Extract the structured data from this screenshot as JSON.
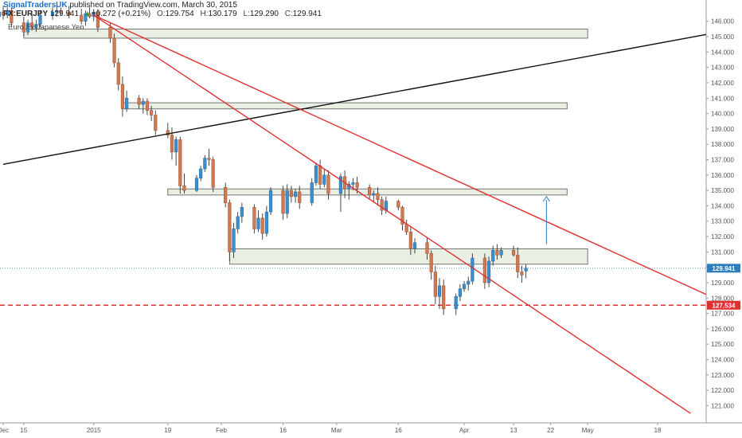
{
  "header": {
    "author": "SignalTradersUK",
    "published_text": "published on TradingView.com, March 30, 2015",
    "symbol": "FX:EURJPY",
    "last": "129.941",
    "change": "+0.272 (+0.21%)",
    "open_label": "O:",
    "open": "129.754",
    "high_label": "H:",
    "high": "130.179",
    "low_label": "L:",
    "low": "129.290",
    "close_label": "C:",
    "close": "129.941",
    "instrument": "Euro Fx/Japanese Yen"
  },
  "colors": {
    "bull": "#3b8fd0",
    "bear": "#d07a52",
    "trendline_red": "#e03030",
    "trendline_black": "#111111",
    "zone_fill": "#e9efe3",
    "zone_stroke": "#555555",
    "current_price_line": "#2f7fbf",
    "level_dashed": "#e03030",
    "arrow": "#4a90c8"
  },
  "chart_data": {
    "type": "candlestick",
    "timeframe": "daily",
    "x_start": "2014-12-10",
    "ylim": [
      120.4,
      146.4
    ],
    "y_ticks": [
      121,
      122,
      123,
      124,
      125,
      126,
      127,
      128,
      129,
      130,
      131,
      132,
      133,
      134,
      135,
      136,
      137,
      138,
      139,
      140,
      141,
      142,
      143,
      144,
      145,
      146
    ],
    "x_ticks": [
      {
        "label": "Dec",
        "date": "2014-12-10"
      },
      {
        "label": "15",
        "date": "2014-12-15"
      },
      {
        "label": "2015",
        "date": "2015-01-01"
      },
      {
        "label": "19",
        "date": "2015-01-19"
      },
      {
        "label": "Feb",
        "date": "2015-02-01"
      },
      {
        "label": "16",
        "date": "2015-02-16"
      },
      {
        "label": "Mar",
        "date": "2015-03-01"
      },
      {
        "label": "16",
        "date": "2015-03-16"
      },
      {
        "label": "Apr",
        "date": "2015-04-01"
      },
      {
        "label": "13",
        "date": "2015-04-13"
      },
      {
        "label": "22",
        "date": "2015-04-22"
      },
      {
        "label": "May",
        "date": "2015-05-01"
      },
      {
        "label": "18",
        "date": "2015-05-18"
      }
    ],
    "candles": [
      {
        "date": "2014-12-08",
        "o": 146.5,
        "h": 147.0,
        "l": 146.0,
        "c": 146.3
      },
      {
        "date": "2014-12-09",
        "o": 146.3,
        "h": 146.8,
        "l": 145.9,
        "c": 146.6
      },
      {
        "date": "2014-12-10",
        "o": 146.6,
        "h": 147.0,
        "l": 146.1,
        "c": 146.4
      },
      {
        "date": "2014-12-11",
        "o": 146.4,
        "h": 146.9,
        "l": 146.2,
        "c": 146.7
      },
      {
        "date": "2014-12-12",
        "o": 146.7,
        "h": 146.9,
        "l": 145.6,
        "c": 145.9
      },
      {
        "date": "2014-12-15",
        "o": 145.9,
        "h": 146.3,
        "l": 145.0,
        "c": 145.3
      },
      {
        "date": "2014-12-16",
        "o": 145.3,
        "h": 146.1,
        "l": 145.1,
        "c": 145.9
      },
      {
        "date": "2014-12-17",
        "o": 145.9,
        "h": 146.5,
        "l": 145.4,
        "c": 145.6
      },
      {
        "date": "2014-12-18",
        "o": 145.6,
        "h": 146.1,
        "l": 145.3,
        "c": 145.8
      },
      {
        "date": "2014-12-19",
        "o": 145.8,
        "h": 146.7,
        "l": 145.6,
        "c": 146.4
      },
      {
        "date": "2014-12-22",
        "o": 146.4,
        "h": 146.9,
        "l": 146.1,
        "c": 146.6
      },
      {
        "date": "2014-12-23",
        "o": 146.6,
        "h": 147.0,
        "l": 146.3,
        "c": 146.7
      },
      {
        "date": "2014-12-24",
        "o": 146.7,
        "h": 146.9,
        "l": 146.4,
        "c": 146.6
      },
      {
        "date": "2014-12-26",
        "o": 146.6,
        "h": 147.0,
        "l": 146.2,
        "c": 146.4
      },
      {
        "date": "2014-12-29",
        "o": 146.4,
        "h": 146.8,
        "l": 145.8,
        "c": 146.0
      },
      {
        "date": "2014-12-30",
        "o": 146.0,
        "h": 146.7,
        "l": 145.7,
        "c": 146.5
      },
      {
        "date": "2014-12-31",
        "o": 146.5,
        "h": 146.9,
        "l": 146.2,
        "c": 146.3
      },
      {
        "date": "2015-01-01",
        "o": 146.3,
        "h": 146.8,
        "l": 146.0,
        "c": 146.6
      },
      {
        "date": "2015-01-02",
        "o": 146.6,
        "h": 146.8,
        "l": 145.3,
        "c": 145.6
      },
      {
        "date": "2015-01-05",
        "o": 145.6,
        "h": 145.9,
        "l": 144.6,
        "c": 144.9
      },
      {
        "date": "2015-01-06",
        "o": 144.9,
        "h": 145.2,
        "l": 143.0,
        "c": 143.3
      },
      {
        "date": "2015-01-07",
        "o": 143.3,
        "h": 143.6,
        "l": 141.5,
        "c": 141.9
      },
      {
        "date": "2015-01-08",
        "o": 141.9,
        "h": 142.4,
        "l": 139.8,
        "c": 140.3
      },
      {
        "date": "2015-01-09",
        "o": 140.3,
        "h": 141.5,
        "l": 140.1,
        "c": 141.0
      },
      {
        "date": "2015-01-12",
        "o": 141.0,
        "h": 141.2,
        "l": 140.3,
        "c": 140.6
      },
      {
        "date": "2015-01-13",
        "o": 140.6,
        "h": 141.0,
        "l": 140.0,
        "c": 140.8
      },
      {
        "date": "2015-01-14",
        "o": 140.8,
        "h": 141.0,
        "l": 139.9,
        "c": 140.2
      },
      {
        "date": "2015-01-15",
        "o": 140.2,
        "h": 140.5,
        "l": 139.5,
        "c": 139.9
      },
      {
        "date": "2015-01-16",
        "o": 139.9,
        "h": 140.2,
        "l": 138.6,
        "c": 138.9
      },
      {
        "date": "2015-01-19",
        "o": 138.9,
        "h": 139.4,
        "l": 138.4,
        "c": 138.6
      },
      {
        "date": "2015-01-20",
        "o": 138.6,
        "h": 139.1,
        "l": 137.0,
        "c": 137.5
      },
      {
        "date": "2015-01-21",
        "o": 137.5,
        "h": 138.5,
        "l": 136.6,
        "c": 138.3
      },
      {
        "date": "2015-01-22",
        "o": 138.3,
        "h": 138.5,
        "l": 134.8,
        "c": 135.3
      },
      {
        "date": "2015-01-23",
        "o": 135.3,
        "h": 136.1,
        "l": 134.8,
        "c": 135.0
      },
      {
        "date": "2015-01-26",
        "o": 135.0,
        "h": 136.0,
        "l": 134.9,
        "c": 135.8
      },
      {
        "date": "2015-01-27",
        "o": 135.8,
        "h": 136.6,
        "l": 135.6,
        "c": 136.4
      },
      {
        "date": "2015-01-28",
        "o": 136.4,
        "h": 137.3,
        "l": 136.2,
        "c": 137.1
      },
      {
        "date": "2015-01-29",
        "o": 137.1,
        "h": 137.7,
        "l": 136.6,
        "c": 137.0
      },
      {
        "date": "2015-01-30",
        "o": 137.0,
        "h": 137.2,
        "l": 134.9,
        "c": 135.2
      },
      {
        "date": "2015-02-02",
        "o": 135.2,
        "h": 135.5,
        "l": 133.9,
        "c": 134.2
      },
      {
        "date": "2015-02-03",
        "o": 134.2,
        "h": 134.4,
        "l": 130.4,
        "c": 131.0
      },
      {
        "date": "2015-02-04",
        "o": 131.0,
        "h": 132.9,
        "l": 130.6,
        "c": 132.5
      },
      {
        "date": "2015-02-05",
        "o": 132.5,
        "h": 133.6,
        "l": 132.2,
        "c": 133.3
      },
      {
        "date": "2015-02-06",
        "o": 133.3,
        "h": 134.2,
        "l": 132.9,
        "c": 133.9
      },
      {
        "date": "2015-02-09",
        "o": 133.9,
        "h": 134.1,
        "l": 132.2,
        "c": 132.5
      },
      {
        "date": "2015-02-10",
        "o": 132.5,
        "h": 133.7,
        "l": 132.3,
        "c": 133.2
      },
      {
        "date": "2015-02-11",
        "o": 133.2,
        "h": 133.5,
        "l": 131.8,
        "c": 132.2
      },
      {
        "date": "2015-02-12",
        "o": 132.2,
        "h": 134.0,
        "l": 132.0,
        "c": 133.6
      },
      {
        "date": "2015-02-13",
        "o": 133.6,
        "h": 135.2,
        "l": 133.4,
        "c": 135.0
      },
      {
        "date": "2015-02-16",
        "o": 135.0,
        "h": 135.3,
        "l": 133.1,
        "c": 133.5
      },
      {
        "date": "2015-02-17",
        "o": 133.5,
        "h": 135.4,
        "l": 133.2,
        "c": 135.0
      },
      {
        "date": "2015-02-18",
        "o": 135.0,
        "h": 135.3,
        "l": 134.2,
        "c": 134.6
      },
      {
        "date": "2015-02-19",
        "o": 134.6,
        "h": 135.1,
        "l": 134.2,
        "c": 134.9
      },
      {
        "date": "2015-02-20",
        "o": 134.9,
        "h": 135.3,
        "l": 133.8,
        "c": 134.2
      },
      {
        "date": "2015-02-23",
        "o": 134.2,
        "h": 135.8,
        "l": 134.0,
        "c": 135.5
      },
      {
        "date": "2015-02-24",
        "o": 135.5,
        "h": 136.8,
        "l": 135.3,
        "c": 136.6
      },
      {
        "date": "2015-02-25",
        "o": 136.6,
        "h": 137.0,
        "l": 135.1,
        "c": 135.4
      },
      {
        "date": "2015-02-26",
        "o": 135.4,
        "h": 136.4,
        "l": 135.2,
        "c": 136.0
      },
      {
        "date": "2015-02-27",
        "o": 136.0,
        "h": 136.3,
        "l": 134.4,
        "c": 134.8
      },
      {
        "date": "2015-03-02",
        "o": 134.8,
        "h": 136.1,
        "l": 133.6,
        "c": 135.9
      },
      {
        "date": "2015-03-03",
        "o": 135.9,
        "h": 136.3,
        "l": 134.5,
        "c": 135.1
      },
      {
        "date": "2015-03-04",
        "o": 135.1,
        "h": 135.6,
        "l": 134.4,
        "c": 135.4
      },
      {
        "date": "2015-03-05",
        "o": 135.4,
        "h": 135.8,
        "l": 135.0,
        "c": 135.5
      },
      {
        "date": "2015-03-06",
        "o": 135.5,
        "h": 135.9,
        "l": 134.8,
        "c": 135.2
      },
      {
        "date": "2015-03-09",
        "o": 135.2,
        "h": 135.4,
        "l": 134.4,
        "c": 134.7
      },
      {
        "date": "2015-03-10",
        "o": 134.7,
        "h": 135.0,
        "l": 134.2,
        "c": 134.8
      },
      {
        "date": "2015-03-11",
        "o": 134.8,
        "h": 135.2,
        "l": 134.0,
        "c": 134.4
      },
      {
        "date": "2015-03-12",
        "o": 134.4,
        "h": 134.6,
        "l": 133.4,
        "c": 133.7
      },
      {
        "date": "2015-03-13",
        "o": 133.7,
        "h": 134.6,
        "l": 133.5,
        "c": 134.3
      },
      {
        "date": "2015-03-16",
        "o": 134.3,
        "h": 134.4,
        "l": 133.7,
        "c": 133.9
      },
      {
        "date": "2015-03-17",
        "o": 133.9,
        "h": 134.0,
        "l": 132.4,
        "c": 132.8
      },
      {
        "date": "2015-03-18",
        "o": 132.8,
        "h": 133.1,
        "l": 132.1,
        "c": 132.3
      },
      {
        "date": "2015-03-19",
        "o": 132.3,
        "h": 132.7,
        "l": 130.8,
        "c": 131.2
      },
      {
        "date": "2015-03-20",
        "o": 131.2,
        "h": 131.9,
        "l": 130.9,
        "c": 131.6
      },
      {
        "date": "2015-03-23",
        "o": 131.6,
        "h": 131.9,
        "l": 130.5,
        "c": 130.9
      },
      {
        "date": "2015-03-24",
        "o": 130.9,
        "h": 131.1,
        "l": 129.2,
        "c": 129.7
      },
      {
        "date": "2015-03-25",
        "o": 129.7,
        "h": 130.1,
        "l": 127.6,
        "c": 128.1
      },
      {
        "date": "2015-03-26",
        "o": 128.1,
        "h": 129.3,
        "l": 127.3,
        "c": 128.8
      },
      {
        "date": "2015-03-27",
        "o": 128.8,
        "h": 129.2,
        "l": 126.9,
        "c": 127.3
      },
      {
        "date": "2015-03-30",
        "o": 127.3,
        "h": 128.3,
        "l": 126.9,
        "c": 128.1
      },
      {
        "date": "2015-03-31",
        "o": 128.1,
        "h": 128.9,
        "l": 127.8,
        "c": 128.6
      },
      {
        "date": "2015-04-01",
        "o": 128.6,
        "h": 129.1,
        "l": 128.4,
        "c": 128.9
      },
      {
        "date": "2015-04-02",
        "o": 128.9,
        "h": 129.4,
        "l": 128.5,
        "c": 129.1
      },
      {
        "date": "2015-04-03",
        "o": 129.1,
        "h": 130.9,
        "l": 128.9,
        "c": 130.6
      },
      {
        "date": "2015-04-06",
        "o": 130.6,
        "h": 130.9,
        "l": 128.6,
        "c": 129.0
      },
      {
        "date": "2015-04-07",
        "o": 129.0,
        "h": 130.7,
        "l": 128.7,
        "c": 130.4
      },
      {
        "date": "2015-04-08",
        "o": 130.4,
        "h": 131.4,
        "l": 130.1,
        "c": 131.1
      },
      {
        "date": "2015-04-09",
        "o": 131.1,
        "h": 131.5,
        "l": 130.5,
        "c": 130.8
      },
      {
        "date": "2015-04-10",
        "o": 130.8,
        "h": 131.3,
        "l": 130.6,
        "c": 131.1
      },
      {
        "date": "2015-04-13",
        "o": 131.1,
        "h": 131.4,
        "l": 130.7,
        "c": 130.8
      },
      {
        "date": "2015-04-14",
        "o": 130.8,
        "h": 131.3,
        "l": 129.3,
        "c": 129.7
      },
      {
        "date": "2015-04-15",
        "o": 129.7,
        "h": 130.1,
        "l": 129.0,
        "c": 129.5
      },
      {
        "date": "2015-04-16",
        "o": 129.754,
        "h": 130.179,
        "l": 129.29,
        "c": 129.941
      }
    ],
    "zones": [
      {
        "date_start": "2014-12-15",
        "date_end": "2015-05-01",
        "low": 144.9,
        "high": 145.5
      },
      {
        "date_start": "2015-01-08",
        "date_end": "2015-04-26",
        "low": 140.3,
        "high": 140.7
      },
      {
        "date_start": "2015-01-19",
        "date_end": "2015-04-26",
        "low": 134.7,
        "high": 135.1
      },
      {
        "date_start": "2015-02-03",
        "date_end": "2015-05-01",
        "low": 130.2,
        "high": 131.2
      }
    ],
    "trendlines": [
      {
        "color": "trendline_black",
        "p1": {
          "date": "2014-12-10",
          "y": 136.7
        },
        "p2": {
          "date": "2015-06-04",
          "y": 145.4
        }
      },
      {
        "color": "trendline_red",
        "p1": {
          "date": "2015-01-01",
          "y": 146.4
        },
        "p2": {
          "date": "2015-06-04",
          "y": 127.6
        }
      },
      {
        "color": "trendline_red",
        "p1": {
          "date": "2015-01-01",
          "y": 146.4
        },
        "p2": {
          "date": "2015-05-26",
          "y": 120.5
        }
      }
    ],
    "levels": [
      {
        "value": 127.534,
        "label": "127.534",
        "style": "dashed",
        "color": "level_dashed"
      },
      {
        "value": 129.941,
        "label": "129.941",
        "style": "dotted",
        "color": "current_price_line"
      }
    ],
    "arrow": {
      "date": "2015-04-21",
      "from_y": 131.5,
      "to_y": 134.6
    }
  }
}
